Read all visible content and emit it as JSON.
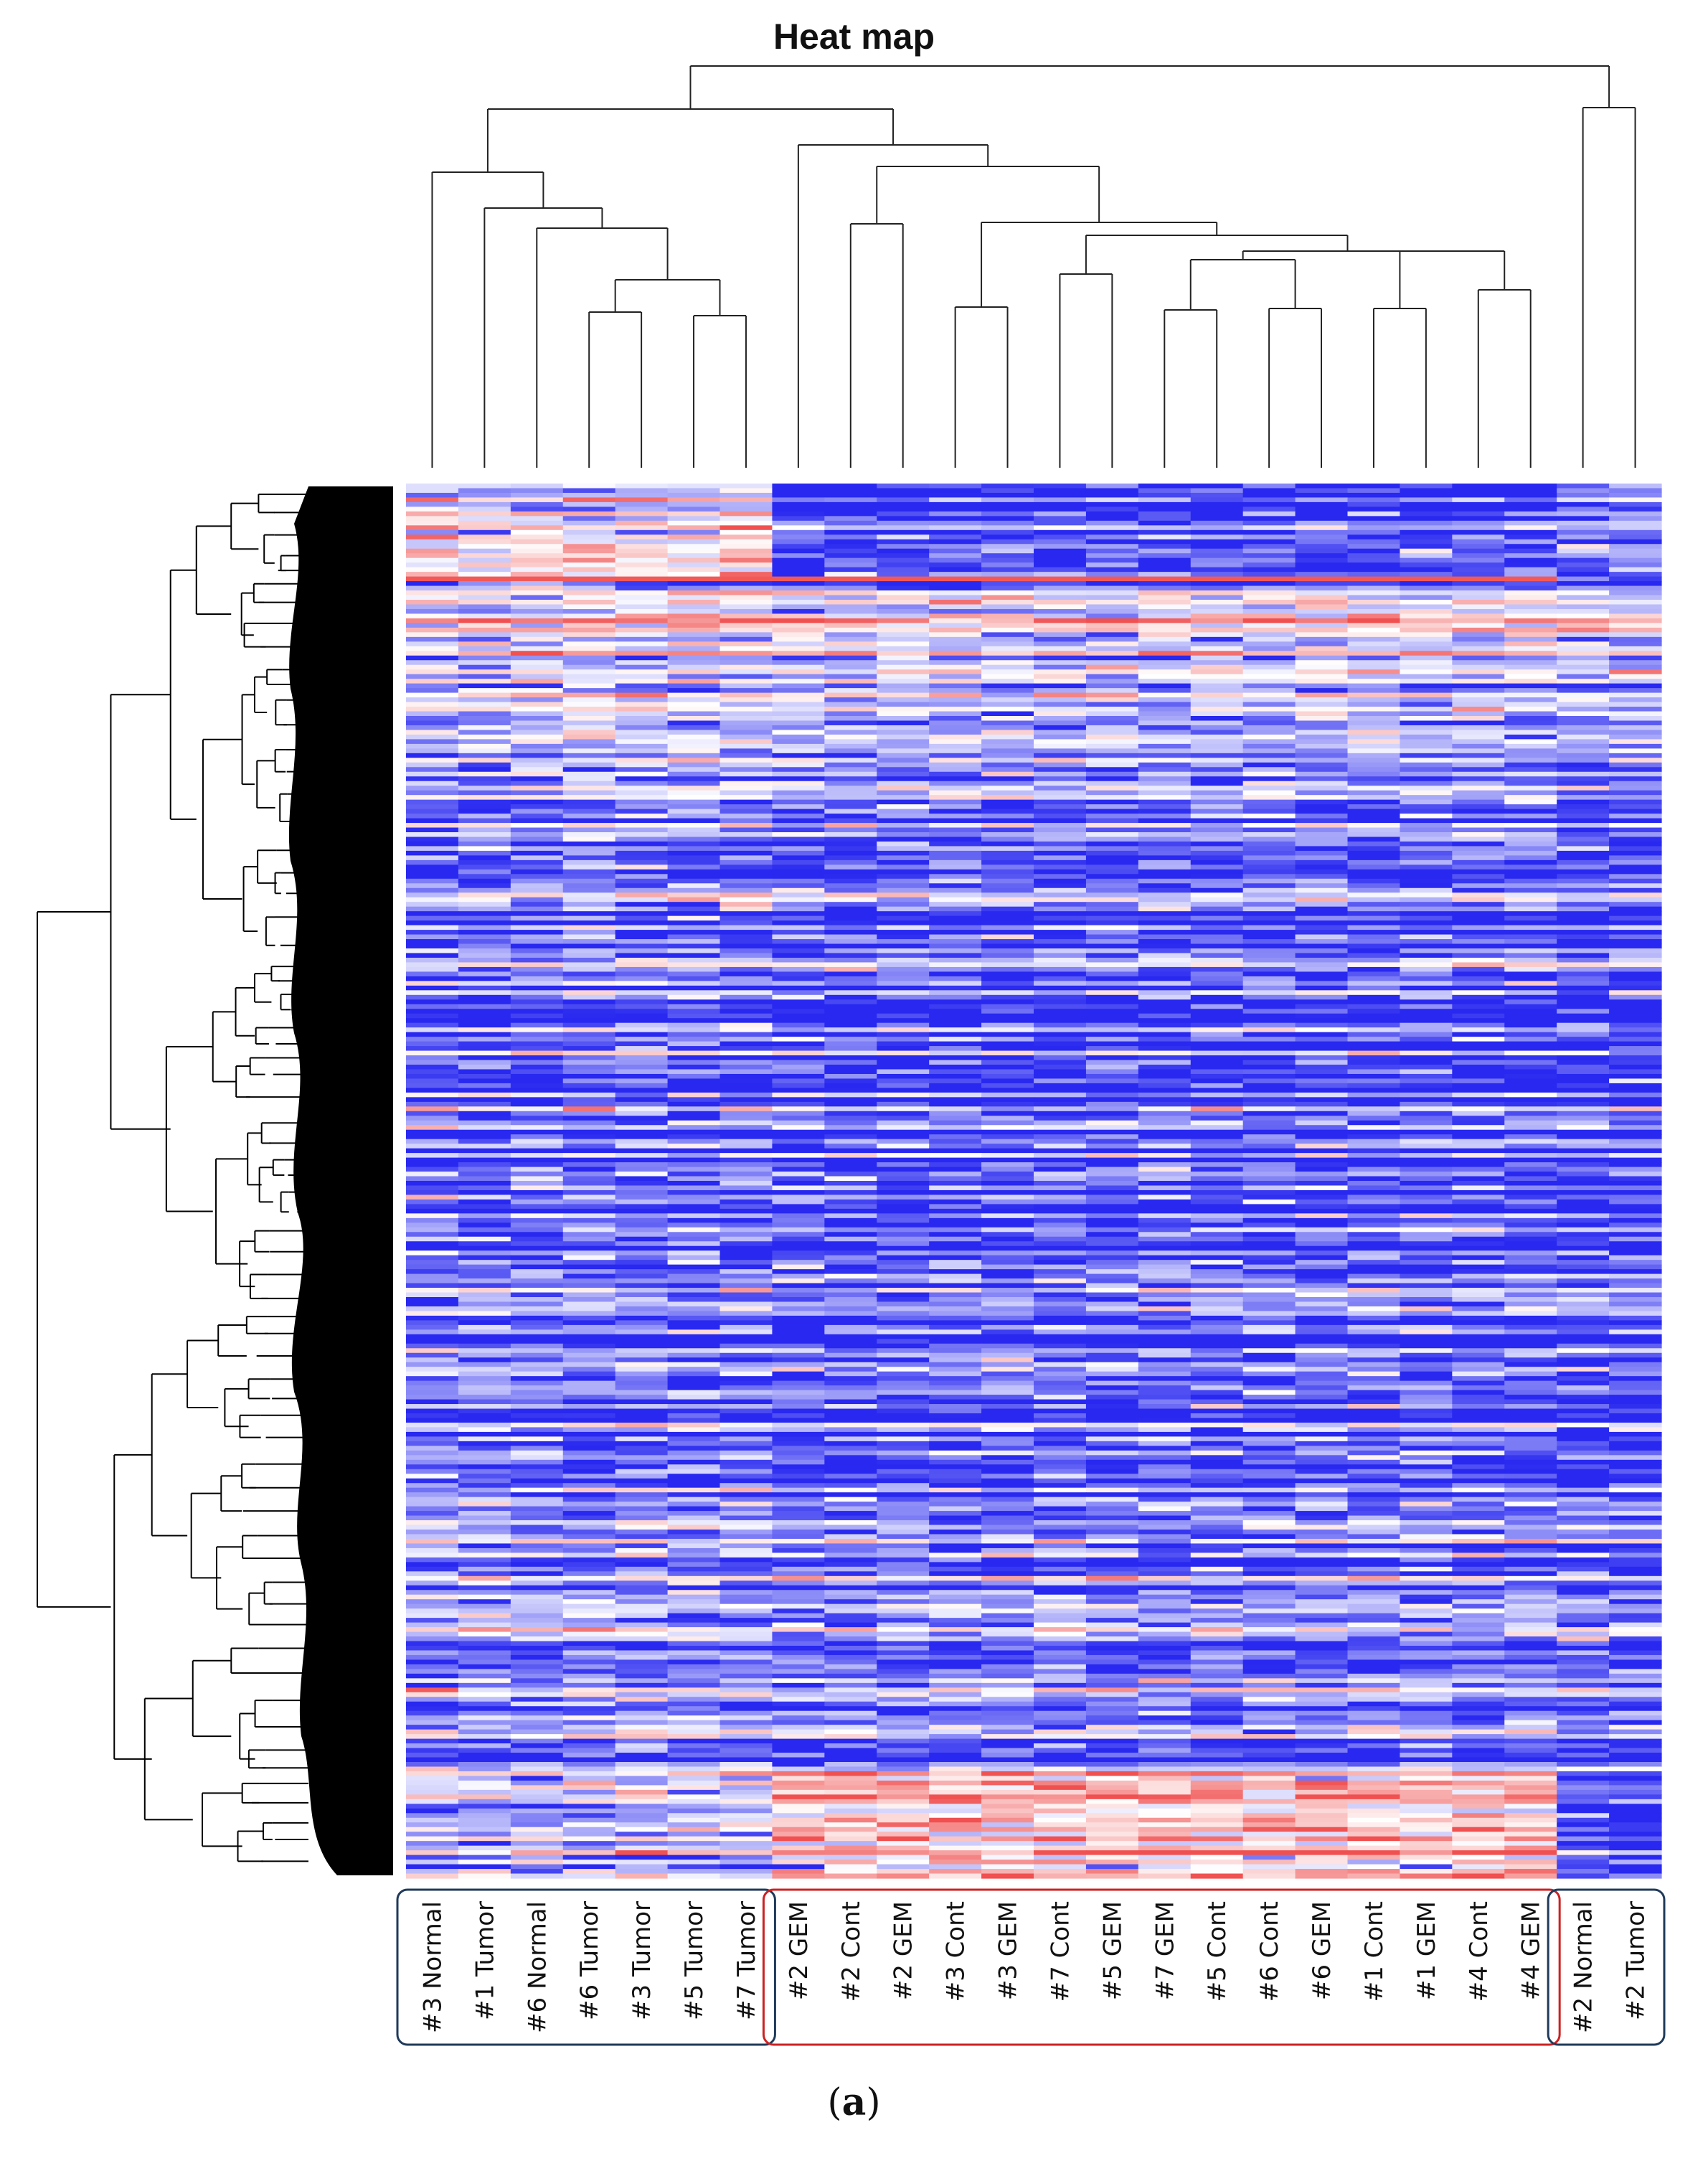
{
  "chart_data": {
    "type": "heatmap",
    "title": "Heat map",
    "caption": "(a)",
    "columns": [
      "#3 Normal",
      "#1 Tumor",
      "#6 Normal",
      "#6 Tumor",
      "#3 Tumor",
      "#5 Tumor",
      "#7 Tumor",
      "#2 GEM",
      "#2 Cont",
      "#2 GEM",
      "#3 Cont",
      "#3 GEM",
      "#7 Cont",
      "#5 GEM",
      "#7 GEM",
      "#5 Cont",
      "#6 Cont",
      "#6 GEM",
      "#1 Cont",
      "#1 GEM",
      "#4 Cont",
      "#4 GEM",
      "#2 Normal",
      "#2 Tumor"
    ],
    "column_groups": [
      {
        "columns": [
          0,
          6
        ],
        "border_color": "#1f3a5a"
      },
      {
        "columns": [
          7,
          21
        ],
        "border_color": "#cc2222"
      },
      {
        "columns": [
          22,
          23
        ],
        "border_color": "#1f3a5a"
      }
    ],
    "color_scale": {
      "low": "#2828f0",
      "mid": "#ffffff",
      "high": "#f05050"
    },
    "column_dendrogram": true,
    "row_dendrogram": true
  }
}
